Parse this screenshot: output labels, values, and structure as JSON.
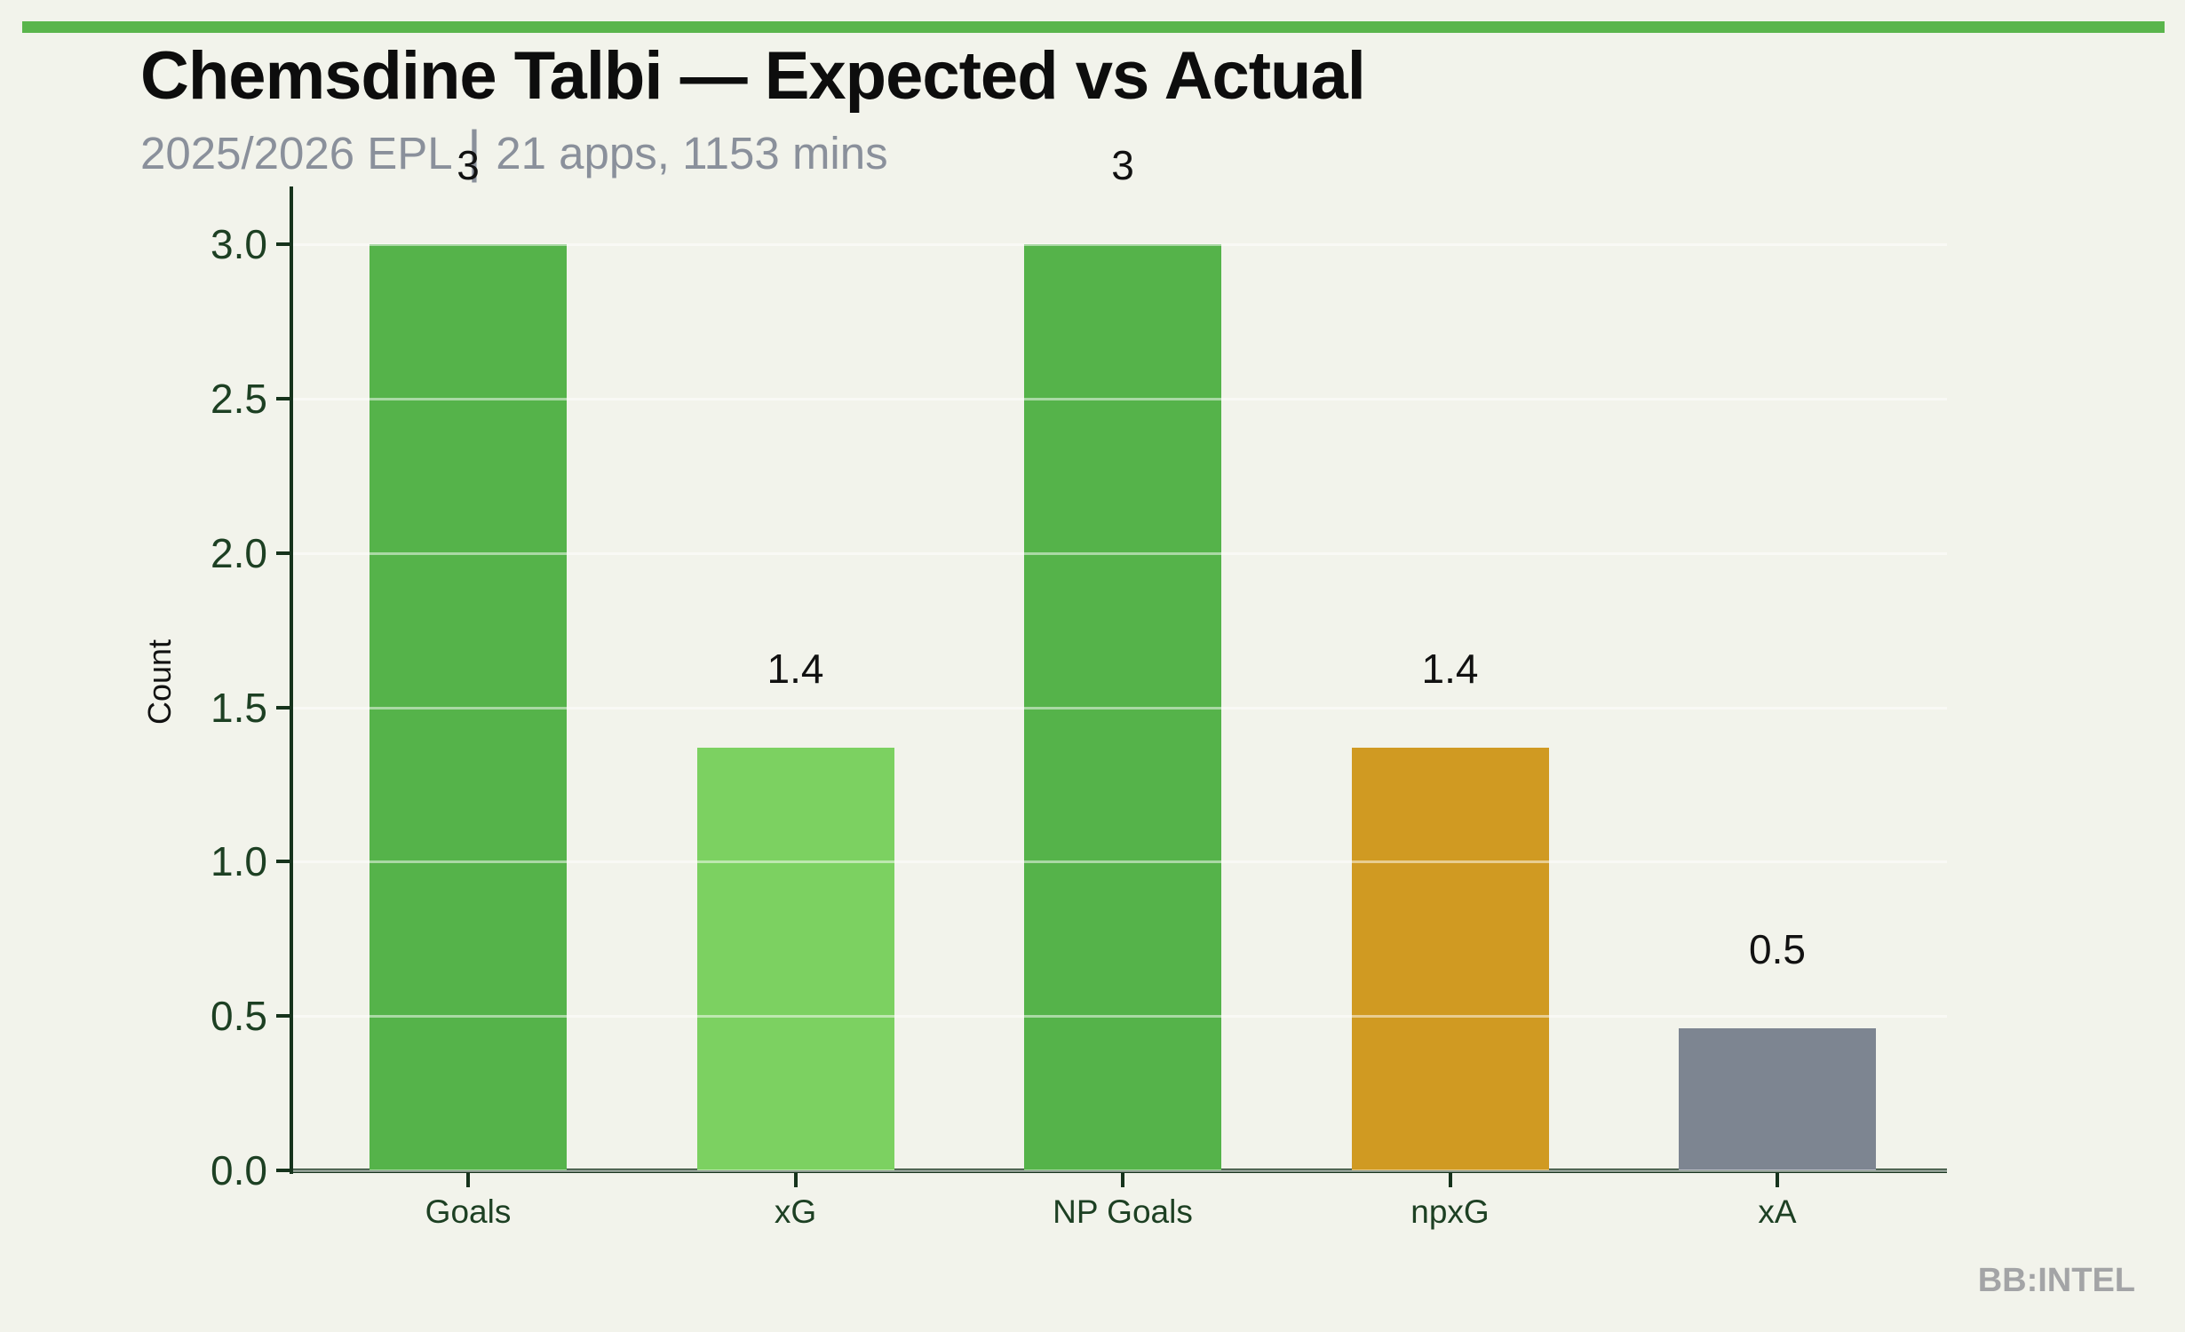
{
  "header": {
    "title": "Chemsdine Talbi — Expected vs Actual",
    "subtitle_left": "2025/2026 EPL",
    "subtitle_separator": "|",
    "subtitle_right": "21 apps, 1153 mins"
  },
  "footer": {
    "watermark": "BB:INTEL"
  },
  "colors": {
    "background": "#f2f3eb",
    "top_strip": "#5ab54c",
    "bar_green": "#55b34a",
    "bar_light_green": "#7cd161",
    "bar_orange": "#d09a22",
    "bar_gray": "#7d8591",
    "axis_spine": "#16331c",
    "tick_label": "#1d4023",
    "title_text": "#0d0d0d",
    "subtitle_text": "#8a909b",
    "value_label": "#111111",
    "ylabel_text": "#111111",
    "watermark": "#a3a4a6",
    "gridline": "rgba(255,255,255,0.5)"
  },
  "chart_data": {
    "type": "bar",
    "title": "Chemsdine Talbi — Expected vs Actual",
    "subtitle": "2025/2026 EPL | 21 apps, 1153 mins",
    "categories": [
      "Goals",
      "xG",
      "NP Goals",
      "npxG",
      "xA"
    ],
    "values": [
      3,
      1.37,
      3,
      1.37,
      0.46
    ],
    "value_labels": [
      "3",
      "1.4",
      "3",
      "1.4",
      "0.5"
    ],
    "bar_color_keys": [
      "bar_green",
      "bar_light_green",
      "bar_green",
      "bar_orange",
      "bar_gray"
    ],
    "xlabel": "",
    "ylabel": "Count",
    "ylim": [
      0,
      3.0
    ],
    "yticks": [
      "0.0",
      "0.5",
      "1.0",
      "1.5",
      "2.0",
      "2.5",
      "3.0"
    ],
    "grid": "horizontal-white-above-bars",
    "legend_position": "none"
  }
}
